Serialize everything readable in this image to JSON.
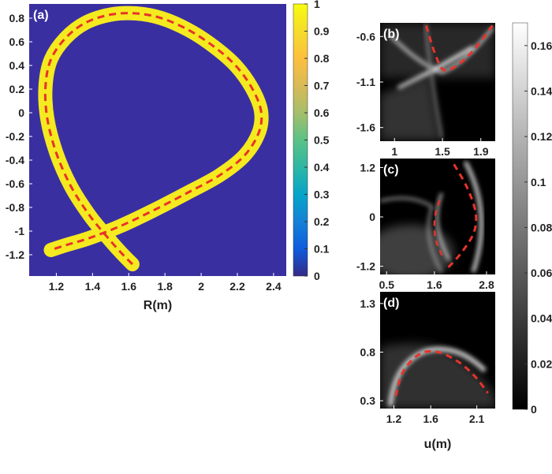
{
  "chart_data": [
    {
      "id": "a",
      "type": "heatmap",
      "panel_label": "(a)",
      "xlabel": "R(m)",
      "ylabel": "",
      "xlim": [
        1.05,
        2.47
      ],
      "ylim": [
        -1.38,
        0.92
      ],
      "xticks": [
        1.2,
        1.4,
        1.6,
        1.8,
        2,
        2.2,
        2.4
      ],
      "yticks": [
        0.8,
        0.6,
        0.4,
        0.2,
        0,
        -0.2,
        -0.4,
        -0.6,
        -0.8,
        -1,
        -1.2
      ],
      "background_color": "#3a2fa0",
      "band_color": "#f5ea1f",
      "dash_color": "#e8332a",
      "curve": [
        [
          1.62,
          -1.28
        ],
        [
          1.55,
          -1.17
        ],
        [
          1.47,
          -1.03
        ],
        [
          1.38,
          -0.86
        ],
        [
          1.28,
          -0.62
        ],
        [
          1.2,
          -0.34
        ],
        [
          1.15,
          -0.05
        ],
        [
          1.14,
          0.22
        ],
        [
          1.17,
          0.45
        ],
        [
          1.25,
          0.63
        ],
        [
          1.36,
          0.76
        ],
        [
          1.5,
          0.83
        ],
        [
          1.64,
          0.84
        ],
        [
          1.78,
          0.8
        ],
        [
          1.93,
          0.7
        ],
        [
          2.07,
          0.56
        ],
        [
          2.19,
          0.4
        ],
        [
          2.28,
          0.21
        ],
        [
          2.33,
          0.02
        ],
        [
          2.32,
          -0.16
        ],
        [
          2.24,
          -0.36
        ],
        [
          2.1,
          -0.53
        ],
        [
          1.92,
          -0.68
        ],
        [
          1.73,
          -0.83
        ],
        [
          1.55,
          -0.96
        ],
        [
          1.38,
          -1.06
        ],
        [
          1.25,
          -1.12
        ],
        [
          1.17,
          -1.16
        ]
      ],
      "colorbar": {
        "min": 0,
        "max": 1,
        "ticks": [
          0,
          0.1,
          0.2,
          0.3,
          0.4,
          0.5,
          0.6,
          0.7,
          0.8,
          0.9,
          1
        ],
        "colormap": "parula"
      }
    },
    {
      "id": "b",
      "type": "heatmap",
      "panel_label": "(b)",
      "xlim": [
        0.85,
        2.05
      ],
      "ylim": [
        -1.75,
        -0.45
      ],
      "xticks": [
        1,
        1.5,
        1.9
      ],
      "yticks": [
        -0.6,
        -1.1,
        -1.6
      ],
      "dash_color": "#e8332a",
      "curve": [
        [
          1.33,
          -0.48
        ],
        [
          1.42,
          -0.78
        ],
        [
          1.52,
          -0.97
        ],
        [
          1.7,
          -0.88
        ],
        [
          1.88,
          -0.68
        ],
        [
          2.02,
          -0.48
        ]
      ]
    },
    {
      "id": "c",
      "type": "heatmap",
      "panel_label": "(c)",
      "xlim": [
        0.35,
        3.0
      ],
      "ylim": [
        -1.4,
        1.42
      ],
      "xticks": [
        0.5,
        1.6,
        2.8
      ],
      "yticks": [
        1.2,
        0,
        -1.2
      ],
      "dash_color": "#e8332a",
      "curve": [
        [
          2.05,
          1.28
        ],
        [
          2.35,
          0.72
        ],
        [
          2.55,
          0.1
        ],
        [
          2.5,
          -0.4
        ],
        [
          2.2,
          -0.9
        ],
        [
          1.85,
          -1.3
        ]
      ],
      "curve2": [
        [
          1.72,
          0.4
        ],
        [
          1.62,
          0.05
        ],
        [
          1.6,
          -0.3
        ],
        [
          1.65,
          -0.62
        ],
        [
          1.78,
          -0.95
        ]
      ]
    },
    {
      "id": "d",
      "type": "heatmap",
      "panel_label": "(d)",
      "xlim": [
        1.05,
        2.3
      ],
      "ylim": [
        0.22,
        1.42
      ],
      "xticks": [
        1.2,
        1.6,
        2.1
      ],
      "yticks": [
        1.3,
        0.8,
        0.3
      ],
      "xlabel": "u(m)",
      "dash_color": "#e8332a",
      "curve": [
        [
          1.22,
          0.35
        ],
        [
          1.3,
          0.6
        ],
        [
          1.48,
          0.78
        ],
        [
          1.68,
          0.8
        ],
        [
          1.9,
          0.7
        ],
        [
          2.08,
          0.55
        ],
        [
          2.22,
          0.38
        ]
      ]
    },
    {
      "id": "gray-colorbar",
      "type": "colorbar",
      "min": 0,
      "max": 0.17,
      "ticks": [
        0,
        0.02,
        0.04,
        0.06,
        0.08,
        0.1,
        0.12,
        0.14,
        0.16
      ],
      "colormap": "gray"
    }
  ]
}
